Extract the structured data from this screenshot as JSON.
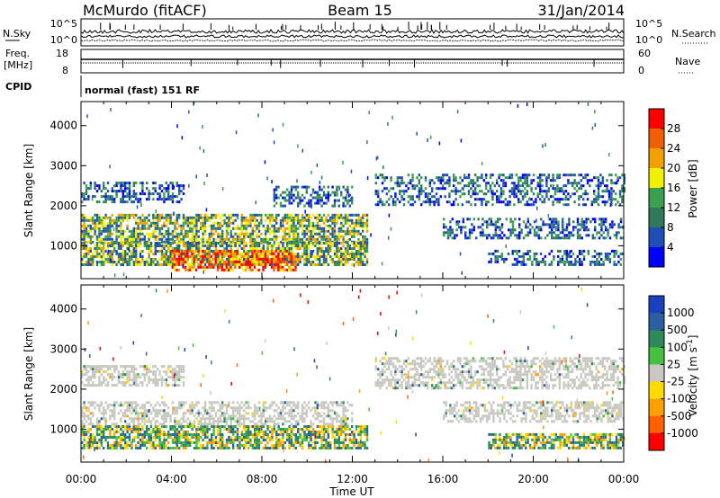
{
  "header": {
    "station": "McMurdo (fitACF)",
    "beam": "Beam 15",
    "date": "31/Jan/2014"
  },
  "top_panels": {
    "nsky_label": "N.Sky",
    "nsearch_label": "N.Search",
    "nsky_ticks": [
      "10^5",
      "10^0"
    ],
    "nsearch_ticks": [
      "10^5",
      "10^0"
    ],
    "freq_label": "Freq.",
    "freq_unit": "[MHz]",
    "freq_ticks": [
      "18",
      "8"
    ],
    "nave_label": "Nave",
    "nave_ticks": [
      "60",
      "0"
    ],
    "cpid_label": "CPID",
    "cpid_value": "normal (fast) 151 RF"
  },
  "colors": {
    "power_scale": [
      "#0000ff",
      "#1f4fb4",
      "#2e7a5a",
      "#3aa050",
      "#f0f000",
      "#f0a000",
      "#f06000",
      "#ff0000"
    ],
    "velocity_scale": [
      "#1a3fbf",
      "#2a5fa0",
      "#2e8a5a",
      "#46c040",
      "#c8c8c0",
      "#ffdc00",
      "#ffa000",
      "#ff6000",
      "#ff0000"
    ],
    "ground_scatter": "#c8c8c0"
  },
  "chart_data": [
    {
      "type": "heatmap",
      "panel": "power",
      "xlabel": "Time UT",
      "ylabel": "Slant Range [km]",
      "xlim": [
        "00:00",
        "24:00"
      ],
      "ylim": [
        180,
        4600
      ],
      "x_ticks": [
        "00:00",
        "04:00",
        "08:00",
        "12:00",
        "16:00",
        "20:00",
        "00:00"
      ],
      "y_ticks": [
        1000,
        2000,
        3000,
        4000
      ],
      "colorbar": {
        "label": "Power [dB]",
        "range": [
          0,
          32
        ],
        "ticks": [
          4,
          8,
          12,
          16,
          20,
          24,
          28
        ]
      },
      "scatter_regions": [
        {
          "t0": 0.0,
          "t1": 12.7,
          "r0": 1100,
          "r1": 1800,
          "level": "mid"
        },
        {
          "t0": 0.0,
          "t1": 12.7,
          "r0": 500,
          "r1": 1100,
          "level": "mid"
        },
        {
          "t0": 4.0,
          "t1": 9.5,
          "r0": 400,
          "r1": 900,
          "level": "high"
        },
        {
          "t0": 0.0,
          "t1": 4.5,
          "r0": 2100,
          "r1": 2600,
          "level": "low"
        },
        {
          "t0": 8.5,
          "t1": 12.0,
          "r0": 2000,
          "r1": 2500,
          "level": "low"
        },
        {
          "t0": 13.0,
          "t1": 24.0,
          "r0": 2000,
          "r1": 2800,
          "level": "low"
        },
        {
          "t0": 16.0,
          "t1": 24.0,
          "r0": 1200,
          "r1": 1700,
          "level": "low"
        },
        {
          "t0": 18.0,
          "t1": 24.0,
          "r0": 500,
          "r1": 900,
          "level": "low"
        }
      ]
    },
    {
      "type": "heatmap",
      "panel": "velocity",
      "xlabel": "Time UT",
      "ylabel": "Slant Range [km]",
      "xlim": [
        "00:00",
        "24:00"
      ],
      "ylim": [
        180,
        4600
      ],
      "x_ticks": [
        "00:00",
        "04:00",
        "08:00",
        "12:00",
        "16:00",
        "20:00",
        "00:00"
      ],
      "y_ticks": [
        1000,
        2000,
        3000,
        4000
      ],
      "colorbar": {
        "label": "Velocity [m s^-1]",
        "ticks": [
          "1000",
          "500",
          "100",
          "25",
          "-25",
          "-100",
          "-500",
          "-1000"
        ]
      },
      "scatter_regions": [
        {
          "t0": 0.0,
          "t1": 12.7,
          "r0": 500,
          "r1": 1100,
          "type": "ionospheric"
        },
        {
          "t0": 0.0,
          "t1": 12.0,
          "r0": 1100,
          "r1": 1700,
          "type": "ground"
        },
        {
          "t0": 0.0,
          "t1": 4.5,
          "r0": 2100,
          "r1": 2600,
          "type": "ground"
        },
        {
          "t0": 13.0,
          "t1": 24.0,
          "r0": 2000,
          "r1": 2800,
          "type": "ground"
        },
        {
          "t0": 16.0,
          "t1": 24.0,
          "r0": 1200,
          "r1": 1700,
          "type": "ground"
        },
        {
          "t0": 18.0,
          "t1": 24.0,
          "r0": 500,
          "r1": 900,
          "type": "ionospheric"
        }
      ]
    }
  ]
}
